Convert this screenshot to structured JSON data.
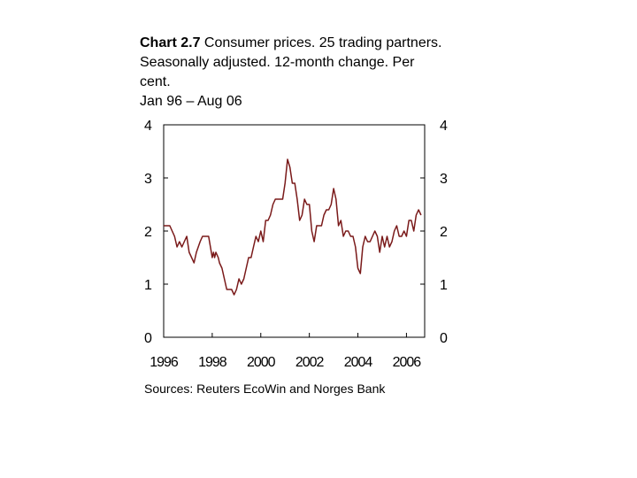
{
  "title": {
    "bold": "Chart 2.7",
    "text": " Consumer prices. 25 trading partners. Seasonally adjusted. 12-month change. Per cent.",
    "period": "Jan 96 – Aug 06"
  },
  "source": "Sources: Reuters EcoWin and Norges Bank",
  "colors": {
    "line": "#7a1a1a",
    "axis": "#000000"
  },
  "chart_data": {
    "type": "line",
    "x_unit": "year",
    "ylim": [
      0,
      4
    ],
    "xlim": [
      1996,
      2006.75
    ],
    "y_ticks": [
      "0",
      "1",
      "2",
      "3",
      "4"
    ],
    "x_ticks": [
      "1996",
      "1998",
      "2000",
      "2002",
      "2004",
      "2006"
    ],
    "grid": false,
    "series": [
      {
        "x": [
          1996.0,
          1996.15,
          1996.25,
          1996.35,
          1996.45,
          1996.55,
          1996.65,
          1996.75,
          1996.85,
          1996.95,
          1997.05,
          1997.15,
          1997.25,
          1997.35,
          1997.5,
          1997.6,
          1997.7,
          1997.85,
          1998.0,
          1998.05,
          1998.1,
          1998.15,
          1998.25,
          1998.3,
          1998.4,
          1998.5,
          1998.6,
          1998.7,
          1998.8,
          1998.9,
          1999.0,
          1999.1,
          1999.2,
          1999.3,
          1999.4,
          1999.5,
          1999.6,
          1999.7,
          1999.8,
          1999.9,
          2000.0,
          2000.1,
          2000.2,
          2000.3,
          2000.4,
          2000.5,
          2000.6,
          2000.7,
          2000.8,
          2000.9,
          2001.0,
          2001.1,
          2001.2,
          2001.3,
          2001.4,
          2001.5,
          2001.6,
          2001.7,
          2001.8,
          2001.9,
          2002.0,
          2002.1,
          2002.2,
          2002.3,
          2002.4,
          2002.5,
          2002.6,
          2002.7,
          2002.8,
          2002.9,
          2003.0,
          2003.1,
          2003.2,
          2003.3,
          2003.4,
          2003.5,
          2003.6,
          2003.7,
          2003.8,
          2003.9,
          2004.0,
          2004.1,
          2004.2,
          2004.3,
          2004.4,
          2004.5,
          2004.6,
          2004.7,
          2004.8,
          2004.9,
          2005.0,
          2005.1,
          2005.2,
          2005.3,
          2005.4,
          2005.5,
          2005.6,
          2005.7,
          2005.8,
          2005.9,
          2006.0,
          2006.1,
          2006.2,
          2006.3,
          2006.4,
          2006.5,
          2006.6
        ],
        "values": [
          2.1,
          2.1,
          2.1,
          2.0,
          1.9,
          1.7,
          1.8,
          1.7,
          1.8,
          1.9,
          1.6,
          1.5,
          1.4,
          1.6,
          1.8,
          1.9,
          1.9,
          1.9,
          1.5,
          1.6,
          1.5,
          1.6,
          1.5,
          1.4,
          1.3,
          1.1,
          0.9,
          0.9,
          0.9,
          0.8,
          0.9,
          1.1,
          1.0,
          1.1,
          1.3,
          1.5,
          1.5,
          1.7,
          1.9,
          1.8,
          2.0,
          1.8,
          2.2,
          2.2,
          2.3,
          2.5,
          2.6,
          2.6,
          2.6,
          2.6,
          2.9,
          3.35,
          3.2,
          2.9,
          2.9,
          2.6,
          2.2,
          2.3,
          2.6,
          2.5,
          2.5,
          2.0,
          1.8,
          2.1,
          2.1,
          2.1,
          2.3,
          2.4,
          2.4,
          2.5,
          2.8,
          2.6,
          2.1,
          2.2,
          1.9,
          2.0,
          2.0,
          1.9,
          1.9,
          1.7,
          1.3,
          1.2,
          1.7,
          1.9,
          1.8,
          1.8,
          1.9,
          2.0,
          1.9,
          1.6,
          1.9,
          1.7,
          1.9,
          1.7,
          1.8,
          2.0,
          2.1,
          1.9,
          1.9,
          2.0,
          1.9,
          2.2,
          2.2,
          2.0,
          2.3,
          2.4,
          2.3
        ]
      }
    ]
  }
}
